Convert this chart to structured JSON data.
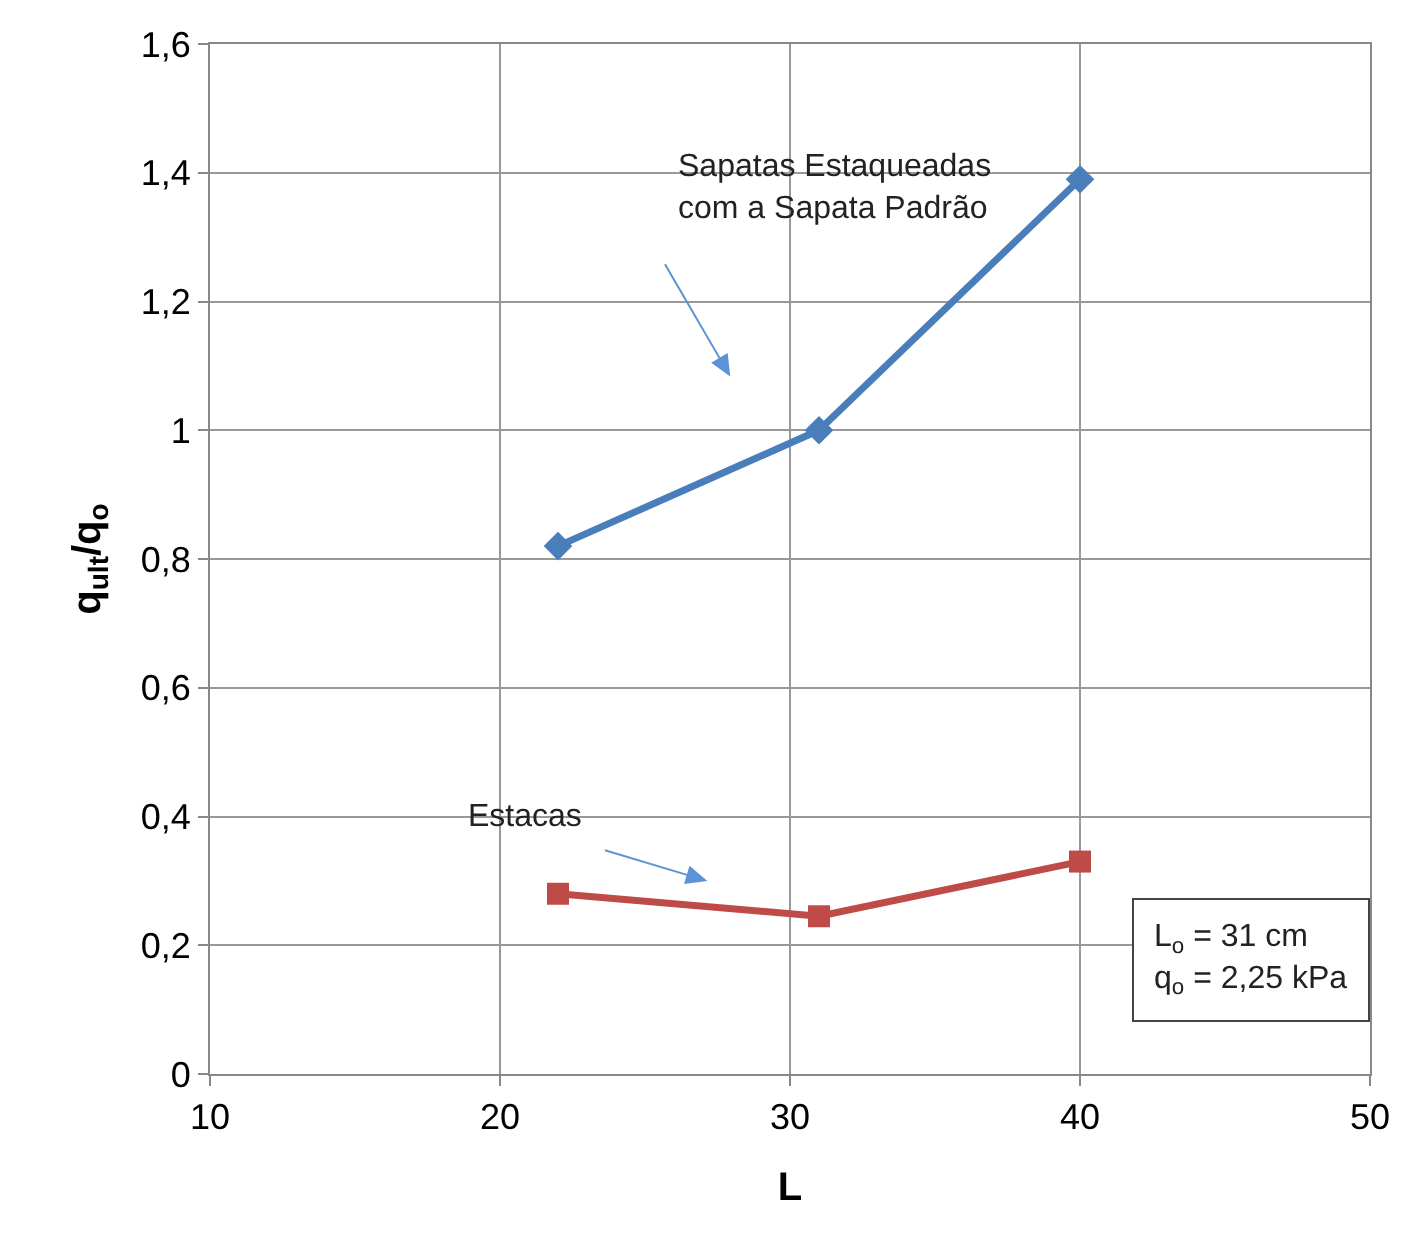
{
  "chart_data": {
    "type": "line",
    "xlabel": "L",
    "ylabel": "q$_{ult}$/q$_{o}$",
    "x": [
      22,
      31,
      40
    ],
    "series": [
      {
        "name": "Sapatas Estaqueadas\ncom a Sapata Padrão",
        "color": "#4a7ebb",
        "values": [
          0.82,
          1.0,
          1.39
        ],
        "marker": "diamond"
      },
      {
        "name": "Estacas",
        "color": "#be4b48",
        "values": [
          0.28,
          0.245,
          0.33
        ],
        "marker": "square"
      }
    ],
    "xlim": [
      10,
      50
    ],
    "xticks": [
      10,
      20,
      30,
      40,
      50
    ],
    "ylim": [
      0,
      1.6
    ],
    "yticks": [
      0,
      {
        "value": 0.2,
        "label": "0,2"
      },
      {
        "value": 0.4,
        "label": "0,4"
      },
      {
        "value": 0.6,
        "label": "0,6"
      },
      {
        "value": 0.8,
        "label": "0,8"
      },
      1,
      {
        "value": 1.2,
        "label": "1,2"
      },
      {
        "value": 1.4,
        "label": "1,4"
      },
      {
        "value": 1.6,
        "label": "1,6"
      }
    ],
    "grid": true,
    "legend": false,
    "line_style": "solid",
    "annotations": [
      "L$_{o}$ = 31 cm\nq$_{o}$ = 2,25 kPa"
    ]
  }
}
